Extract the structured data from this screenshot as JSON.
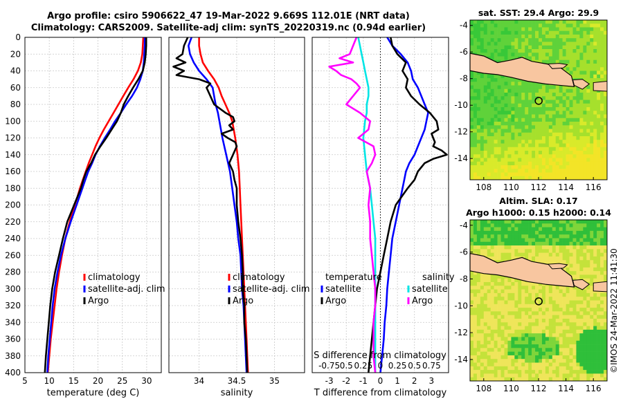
{
  "header": {
    "title1": "Argo profile: csiro 5906622_47 19-Mar-2022 9.669S 112.01E (NRT data)",
    "title2": "Climatology: CARS2009. Satellite-adj clim: synTS_20220319.nc (0.94d earlier)"
  },
  "credit": "©IMOS 24-Mar-2022 11:41:30",
  "maps": {
    "sst_title": "sat. SST: 29.4 Argo: 29.9",
    "sla_title1": "Altim. SLA: 0.17",
    "sla_title2": "Argo h1000: 0.15 h2000: 0.14",
    "x_ticks": [
      "108",
      "110",
      "112",
      "114",
      "116"
    ],
    "y_ticks": [
      "-4",
      "-6",
      "-8",
      "-10",
      "-12",
      "-14"
    ]
  },
  "chart_data": [
    {
      "type": "line",
      "title": "",
      "xlabel": "temperature (deg C)",
      "ylabel": "",
      "xlim": [
        5,
        33
      ],
      "ylim": [
        400,
        0
      ],
      "x_ticks": [
        5,
        10,
        15,
        20,
        25,
        30
      ],
      "y_ticks": [
        0,
        20,
        40,
        60,
        80,
        100,
        120,
        140,
        160,
        180,
        200,
        220,
        240,
        260,
        280,
        300,
        320,
        340,
        360,
        380,
        400
      ],
      "legend": [
        "climatology",
        "satellite-adj. clim",
        "Argo"
      ],
      "series": [
        {
          "name": "climatology",
          "color": "#ff0000",
          "depth": [
            0,
            10,
            20,
            30,
            40,
            50,
            60,
            70,
            80,
            90,
            100,
            110,
            120,
            130,
            140,
            150,
            160,
            170,
            180,
            190,
            200,
            220,
            240,
            260,
            280,
            300,
            320,
            340,
            360,
            380,
            400
          ],
          "values": [
            29.3,
            29.2,
            29.1,
            28.8,
            28.2,
            27.3,
            26.2,
            25.2,
            24.2,
            23.2,
            22.2,
            21.2,
            20.3,
            19.5,
            18.8,
            18.1,
            17.5,
            16.9,
            16.3,
            15.8,
            15.2,
            14.2,
            13.3,
            12.6,
            12.0,
            11.5,
            11.1,
            10.7,
            10.3,
            10.0,
            9.7
          ]
        },
        {
          "name": "satellite-adj. clim",
          "color": "#0000ff",
          "depth": [
            0,
            10,
            20,
            30,
            40,
            50,
            60,
            70,
            80,
            90,
            100,
            110,
            120,
            130,
            140,
            150,
            160,
            170,
            180,
            190,
            200,
            220,
            240,
            260,
            280,
            300,
            320,
            340,
            360,
            380,
            400
          ],
          "values": [
            29.6,
            29.6,
            29.5,
            29.4,
            29.2,
            28.7,
            28.0,
            27.0,
            25.8,
            24.7,
            23.5,
            22.5,
            21.4,
            20.4,
            19.5,
            18.8,
            18.0,
            17.4,
            16.8,
            16.2,
            15.6,
            14.4,
            13.3,
            12.4,
            11.7,
            11.1,
            10.7,
            10.4,
            10.1,
            9.8,
            9.6
          ]
        },
        {
          "name": "Argo",
          "color": "#000000",
          "depth": [
            0,
            10,
            20,
            30,
            40,
            50,
            60,
            70,
            80,
            90,
            100,
            110,
            120,
            130,
            140,
            150,
            160,
            170,
            180,
            190,
            200,
            220,
            240,
            260,
            280,
            300,
            320,
            340,
            360,
            380,
            400
          ],
          "values": [
            29.9,
            29.9,
            29.8,
            29.6,
            29.2,
            28.3,
            27.2,
            26.2,
            25.3,
            24.7,
            23.9,
            22.8,
            21.7,
            20.5,
            19.4,
            18.6,
            17.6,
            17.0,
            16.5,
            15.8,
            15.1,
            13.7,
            12.8,
            12.0,
            11.2,
            10.6,
            10.2,
            9.9,
            9.6,
            9.3,
            9.1
          ]
        }
      ]
    },
    {
      "type": "line",
      "title": "",
      "xlabel": "salinity",
      "ylabel": "",
      "xlim": [
        33.6,
        35.4
      ],
      "ylim": [
        400,
        0
      ],
      "x_ticks": [
        34,
        34.5,
        35
      ],
      "legend": [
        "climatology",
        "satellite-adj. clim",
        "Argo"
      ],
      "series": [
        {
          "name": "climatology",
          "color": "#ff0000",
          "depth": [
            0,
            10,
            20,
            30,
            40,
            50,
            60,
            70,
            80,
            90,
            100,
            120,
            140,
            160,
            180,
            200,
            220,
            240,
            260,
            280,
            300,
            320,
            340,
            360,
            380,
            400
          ],
          "values": [
            34.0,
            34.0,
            34.02,
            34.05,
            34.12,
            34.2,
            34.26,
            34.3,
            34.35,
            34.4,
            34.44,
            34.48,
            34.51,
            34.53,
            34.54,
            34.55,
            34.56,
            34.57,
            34.58,
            34.59,
            34.6,
            34.61,
            34.62,
            34.63,
            34.64,
            34.65
          ]
        },
        {
          "name": "satellite-adj. clim",
          "color": "#0000ff",
          "depth": [
            0,
            10,
            20,
            30,
            40,
            50,
            60,
            70,
            80,
            90,
            100,
            120,
            140,
            160,
            180,
            200,
            220,
            240,
            260,
            280,
            300,
            320,
            340,
            360,
            380,
            400
          ],
          "values": [
            33.9,
            33.86,
            33.88,
            33.93,
            34.0,
            34.1,
            34.18,
            34.2,
            34.22,
            34.25,
            34.27,
            34.31,
            34.36,
            34.41,
            34.44,
            34.47,
            34.5,
            34.52,
            34.55,
            34.56,
            34.57,
            34.59,
            34.6,
            34.61,
            34.62,
            34.63
          ]
        },
        {
          "name": "Argo",
          "color": "#000000",
          "depth": [
            0,
            10,
            20,
            25,
            30,
            35,
            40,
            45,
            50,
            55,
            60,
            70,
            80,
            90,
            95,
            100,
            105,
            110,
            115,
            120,
            125,
            130,
            140,
            150,
            160,
            170,
            180,
            200,
            220,
            240,
            260,
            280,
            300,
            320,
            340,
            360,
            380,
            400
          ],
          "values": [
            33.85,
            33.8,
            33.78,
            33.7,
            33.82,
            33.66,
            33.8,
            33.7,
            34.0,
            34.15,
            34.1,
            34.15,
            34.2,
            34.35,
            34.45,
            34.47,
            34.4,
            34.45,
            34.3,
            34.38,
            34.48,
            34.5,
            34.45,
            34.4,
            34.45,
            34.47,
            34.5,
            34.5,
            34.52,
            34.55,
            34.57,
            34.58,
            34.58,
            34.6,
            34.6,
            34.62,
            34.63,
            34.64
          ]
        }
      ]
    },
    {
      "type": "line",
      "title": "",
      "xlabel": "T difference from climatology",
      "xlabel_top": "S difference from climatology",
      "xlim": [
        -4,
        4
      ],
      "ylim": [
        400,
        0
      ],
      "x_ticks": [
        -3,
        -2,
        -1,
        0,
        1,
        2,
        3
      ],
      "x_ticks_top": [
        "-0.75",
        "0.5",
        "0.25",
        "0",
        "0.25",
        "0.5",
        "0.75"
      ],
      "legend_titles": [
        "temperature",
        "salinity"
      ],
      "legend": [
        "satellite",
        "Argo",
        "satellite",
        "Argo"
      ],
      "series": [
        {
          "name": "temperature satellite",
          "color": "#0000ff",
          "depth": [
            0,
            10,
            20,
            30,
            40,
            50,
            60,
            70,
            80,
            90,
            100,
            110,
            120,
            130,
            140,
            150,
            160,
            170,
            180,
            200,
            220,
            240,
            260,
            280,
            300,
            320,
            340,
            360,
            380,
            400
          ],
          "values": [
            0.4,
            0.7,
            1.2,
            1.6,
            1.8,
            1.9,
            2.2,
            2.4,
            2.6,
            2.8,
            2.7,
            2.6,
            2.4,
            2.2,
            2.0,
            1.7,
            1.5,
            1.4,
            1.3,
            1.1,
            0.9,
            0.7,
            0.6,
            0.5,
            0.4,
            0.35,
            0.25,
            0.2,
            0.1,
            0.0
          ]
        },
        {
          "name": "temperature Argo",
          "color": "#000000",
          "depth": [
            0,
            10,
            20,
            30,
            40,
            50,
            60,
            70,
            80,
            90,
            100,
            110,
            115,
            120,
            125,
            130,
            135,
            140,
            145,
            150,
            160,
            170,
            180,
            200,
            220,
            240,
            260,
            280,
            300,
            320,
            340,
            360,
            380,
            400
          ],
          "values": [
            0.6,
            0.7,
            1.0,
            1.5,
            1.3,
            1.6,
            1.5,
            1.8,
            2.3,
            2.9,
            3.3,
            3.4,
            3.0,
            3.1,
            3.2,
            3.1,
            3.6,
            3.9,
            3.1,
            2.6,
            2.2,
            2.0,
            1.6,
            0.9,
            0.6,
            0.4,
            0.2,
            0.0,
            -0.2,
            -0.3,
            -0.4,
            -0.5,
            -0.6,
            -0.7
          ]
        },
        {
          "name": "salinity satellite",
          "color": "#00e5e5",
          "depth": [
            0,
            10,
            20,
            30,
            40,
            50,
            60,
            70,
            80,
            90,
            100,
            120,
            140,
            160,
            180,
            200,
            220,
            240,
            260,
            280,
            300,
            320,
            340,
            360,
            380,
            400
          ],
          "values": [
            -1.3,
            -1.2,
            -1.1,
            -1.0,
            -0.9,
            -0.8,
            -0.7,
            -0.7,
            -0.8,
            -0.8,
            -0.9,
            -1.0,
            -0.9,
            -0.8,
            -0.6,
            -0.5,
            -0.4,
            -0.3,
            -0.3,
            -0.3,
            -0.3,
            -0.3,
            -0.3,
            -0.3,
            -0.3,
            -0.3
          ]
        },
        {
          "name": "salinity Argo",
          "color": "#ff00ff",
          "depth": [
            0,
            10,
            20,
            25,
            30,
            35,
            40,
            45,
            50,
            55,
            60,
            70,
            80,
            90,
            100,
            110,
            120,
            130,
            140,
            150,
            160,
            180,
            200,
            220,
            240,
            260,
            280,
            300,
            320,
            340,
            360,
            380,
            400
          ],
          "values": [
            -1.4,
            -1.6,
            -1.8,
            -2.4,
            -1.6,
            -3.0,
            -2.6,
            -2.3,
            -1.7,
            -1.4,
            -1.2,
            -1.6,
            -2.0,
            -1.2,
            -0.6,
            -0.7,
            -1.3,
            -0.4,
            -0.3,
            -0.5,
            -0.8,
            -0.6,
            -0.7,
            -0.6,
            -0.6,
            -0.5,
            -0.4,
            -0.3,
            -0.3,
            -0.4,
            -0.4,
            -0.4,
            -0.3
          ]
        }
      ]
    }
  ]
}
